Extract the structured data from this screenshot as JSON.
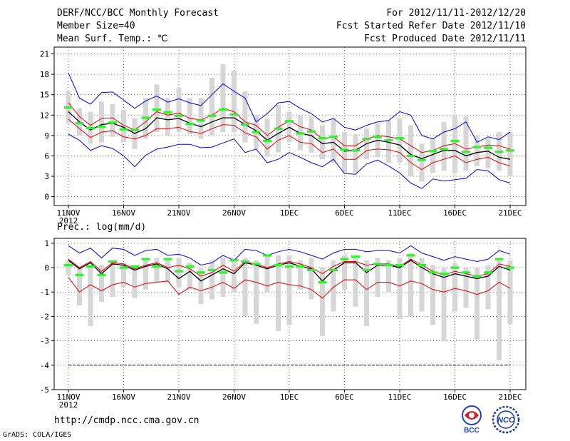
{
  "header": {
    "title": "DERF/NCC/BCC Monthly Forecast",
    "member_size": "Member Size=40",
    "variable": "Mean Surf. Temp.: ℃",
    "period": "For 2012/11/11-2012/12/20",
    "started": "Fcst Started Refer Date 2012/11/10",
    "produced": "Fcst Produced Date 2012/11/11"
  },
  "footer": {
    "url": "http://cmdp.ncc.cma.gov.cn",
    "grads": "GrADS: COLA/IGES",
    "logo_bcc": "BCC",
    "logo_ncc": "NCC"
  },
  "colors": {
    "max_line": "#0000dd",
    "upper_line": "#dd0000",
    "mean_line": "#000000",
    "box": "#d6d6d6",
    "green": "#33ee33",
    "grid": "#555555",
    "ref_line": "#0000cc"
  },
  "chart_data": [
    {
      "type": "line",
      "title": "Mean Surf. Temp.: ℃",
      "x_tick_labels": [
        "11NOV",
        "16NOV",
        "21NOV",
        "26NOV",
        "1DEC",
        "6DEC",
        "11DEC",
        "16DEC",
        "21DEC"
      ],
      "x_tick_sublabel": "2012",
      "x_day_range": [
        1,
        41
      ],
      "ylim": [
        -1.3,
        22
      ],
      "yticks": [
        0,
        3,
        6,
        9,
        12,
        15,
        18,
        21
      ],
      "grid": true,
      "series": [
        {
          "name": "max",
          "values": [
            18.2,
            14.5,
            13.6,
            15.3,
            15.4,
            14.2,
            13.0,
            14.1,
            14.8,
            13.9,
            14.4,
            13.8,
            13.4,
            15.0,
            16.6,
            15.5,
            14.5,
            11.0,
            12.2,
            13.8,
            14.0,
            13.0,
            12.2,
            11.0,
            11.5,
            10.2,
            9.8,
            10.5,
            11.0,
            11.2,
            12.5,
            12.0,
            9.0,
            8.5,
            9.5,
            10.0,
            11.0,
            8.0,
            8.8,
            8.4,
            9.5
          ]
        },
        {
          "name": "upper",
          "values": [
            13.8,
            11.8,
            10.5,
            11.5,
            11.6,
            10.5,
            9.8,
            11.0,
            12.5,
            12.0,
            12.3,
            11.5,
            11.3,
            12.0,
            13.0,
            12.5,
            11.0,
            10.5,
            9.0,
            10.2,
            11.2,
            10.3,
            9.8,
            8.5,
            8.8,
            7.5,
            7.5,
            8.5,
            9.0,
            8.8,
            8.5,
            7.5,
            6.5,
            6.8,
            7.5,
            7.8,
            7.0,
            7.3,
            7.6,
            7.5,
            7.0
          ]
        },
        {
          "name": "mean",
          "values": [
            12.5,
            11.0,
            9.8,
            10.6,
            10.8,
            10.2,
            9.3,
            10.0,
            11.6,
            11.3,
            11.5,
            10.8,
            10.3,
            11.0,
            11.6,
            11.6,
            10.6,
            9.7,
            8.3,
            9.3,
            10.2,
            9.3,
            9.0,
            7.8,
            8.0,
            6.7,
            6.8,
            7.8,
            8.3,
            8.0,
            7.6,
            6.2,
            5.6,
            6.2,
            6.8,
            6.8,
            6.0,
            6.5,
            6.7,
            5.8,
            5.5
          ]
        },
        {
          "name": "lower",
          "values": [
            11.4,
            10.0,
            8.7,
            9.5,
            9.7,
            8.8,
            8.5,
            9.0,
            10.0,
            10.0,
            10.2,
            9.6,
            9.3,
            10.0,
            10.6,
            10.5,
            9.4,
            8.8,
            7.0,
            8.3,
            9.0,
            8.0,
            7.8,
            6.5,
            7.0,
            5.5,
            5.5,
            6.8,
            7.0,
            6.9,
            6.5,
            5.0,
            4.0,
            5.0,
            5.5,
            6.0,
            5.0,
            5.5,
            5.8,
            5.0,
            4.5
          ]
        },
        {
          "name": "min",
          "values": [
            9.2,
            8.3,
            6.8,
            7.5,
            7.1,
            6.0,
            4.4,
            6.1,
            7.0,
            7.3,
            7.7,
            7.7,
            7.2,
            7.3,
            7.9,
            8.5,
            6.5,
            7.0,
            5.0,
            5.5,
            6.5,
            5.8,
            5.0,
            4.4,
            5.5,
            3.4,
            3.3,
            4.8,
            5.4,
            4.5,
            3.5,
            2.0,
            1.2,
            2.6,
            2.3,
            2.5,
            2.7,
            4.0,
            3.8,
            2.5,
            2.0
          ]
        },
        {
          "name": "green_marker",
          "values": [
            13.1,
            10.8,
            10.1,
            10.3,
            10.9,
            9.9,
            9.8,
            11.6,
            12.8,
            12.4,
            11.9,
            10.7,
            11.2,
            11.9,
            12.8,
            12.1,
            10.6,
            9.5,
            8.2,
            10.0,
            11.1,
            9.3,
            9.6,
            8.6,
            8.8,
            6.9,
            6.8,
            8.5,
            8.8,
            8.3,
            8.6,
            6.0,
            5.4,
            6.7,
            7.0,
            8.2,
            6.6,
            7.3,
            7.2,
            6.6,
            6.8
          ]
        },
        {
          "name": "box_high",
          "values": [
            15.5,
            13.0,
            12.5,
            14.0,
            13.6,
            12.8,
            11.5,
            14.5,
            16.5,
            14.5,
            16.0,
            14.5,
            14.5,
            17.5,
            19.5,
            18.5,
            15.5,
            12.0,
            11.5,
            13.5,
            12.5,
            12.0,
            11.8,
            10.5,
            11.5,
            9.5,
            9.2,
            10.0,
            10.8,
            11.2,
            11.5,
            10.5,
            7.8,
            8.5,
            11.0,
            12.0,
            11.8,
            9.0,
            8.5,
            9.5,
            9.5
          ]
        },
        {
          "name": "box_low",
          "values": [
            10.8,
            9.0,
            7.8,
            8.0,
            8.8,
            8.0,
            7.0,
            8.5,
            9.5,
            9.0,
            9.5,
            9.2,
            8.5,
            9.0,
            9.5,
            9.5,
            8.0,
            7.0,
            6.0,
            6.5,
            8.0,
            6.8,
            6.5,
            5.5,
            5.0,
            3.5,
            3.5,
            5.5,
            5.8,
            5.0,
            5.0,
            3.0,
            2.2,
            3.5,
            3.8,
            3.5,
            3.8,
            4.5,
            4.2,
            3.8,
            3.0
          ]
        }
      ]
    },
    {
      "type": "line",
      "title": "Prec.: log(mm/d)",
      "x_tick_labels": [
        "11NOV",
        "16NOV",
        "21NOV",
        "26NOV",
        "1DEC",
        "6DEC",
        "11DEC",
        "16DEC",
        "21DEC"
      ],
      "x_tick_sublabel": "2012",
      "x_day_range": [
        1,
        41
      ],
      "ylim": [
        -5,
        1.2
      ],
      "yticks": [
        -5,
        -4,
        -3,
        -2,
        -1,
        0,
        1
      ],
      "grid": true,
      "reference_line": {
        "name": "dry_threshold",
        "value": -4,
        "style": "dashed"
      },
      "series": [
        {
          "name": "max",
          "values": [
            0.9,
            0.6,
            0.8,
            0.4,
            0.8,
            0.75,
            0.5,
            0.7,
            0.75,
            0.5,
            0.55,
            0.4,
            0.1,
            0.2,
            0.5,
            0.3,
            0.75,
            0.7,
            0.5,
            0.65,
            0.75,
            0.65,
            0.5,
            0.35,
            0.6,
            0.75,
            0.75,
            0.65,
            0.7,
            0.7,
            0.6,
            0.9,
            0.6,
            0.45,
            0.3,
            0.45,
            0.35,
            0.25,
            0.35,
            0.7,
            0.55
          ]
        },
        {
          "name": "upper",
          "values": [
            0.35,
            0.0,
            0.25,
            -0.15,
            0.2,
            0.15,
            -0.05,
            0.1,
            0.2,
            0.0,
            0.1,
            -0.05,
            -0.35,
            -0.2,
            0.1,
            -0.15,
            0.25,
            0.15,
            0.0,
            0.15,
            0.25,
            0.15,
            0.0,
            -0.25,
            0.05,
            0.25,
            0.25,
            0.1,
            0.15,
            0.15,
            0.05,
            0.35,
            0.1,
            -0.15,
            -0.3,
            -0.15,
            -0.25,
            -0.35,
            -0.25,
            0.15,
            0.05
          ]
        },
        {
          "name": "mean",
          "values": [
            0.3,
            -0.05,
            0.2,
            -0.25,
            0.15,
            0.1,
            -0.1,
            0.05,
            0.15,
            -0.05,
            -0.45,
            -0.15,
            -0.55,
            -0.3,
            -0.05,
            -0.25,
            0.2,
            0.1,
            -0.05,
            0.1,
            0.2,
            0.05,
            -0.05,
            -0.55,
            -0.1,
            0.2,
            0.2,
            -0.2,
            0.1,
            0.1,
            0.0,
            0.3,
            0.0,
            -0.25,
            -0.4,
            -0.25,
            -0.35,
            -0.45,
            -0.35,
            0.05,
            -0.1
          ]
        },
        {
          "name": "lower",
          "values": [
            -0.4,
            -1.0,
            -0.7,
            -0.95,
            -0.7,
            -0.6,
            -0.8,
            -0.65,
            -0.6,
            -0.55,
            -1.1,
            -0.8,
            -0.95,
            -0.8,
            -0.6,
            -0.85,
            -0.5,
            -0.6,
            -0.75,
            -0.6,
            -0.7,
            -0.75,
            -0.9,
            -1.25,
            -0.8,
            -0.5,
            -0.5,
            -0.9,
            -0.6,
            -0.6,
            -0.75,
            -0.55,
            -0.65,
            -0.9,
            -1.0,
            -0.85,
            -0.95,
            -1.1,
            -0.95,
            -0.6,
            -0.85
          ]
        },
        {
          "name": "green_marker",
          "values": [
            0.1,
            -0.3,
            0.05,
            -0.3,
            0.25,
            0.0,
            0.05,
            0.35,
            0.05,
            0.35,
            -0.15,
            0.05,
            -0.2,
            -0.1,
            -0.2,
            0.3,
            0.25,
            0.15,
            0.5,
            0.1,
            0.05,
            0.05,
            -0.1,
            -0.6,
            -0.1,
            0.35,
            0.45,
            -0.1,
            0.15,
            0.1,
            0.1,
            0.5,
            0.1,
            -0.2,
            -0.25,
            0.0,
            -0.2,
            -0.35,
            -0.2,
            0.35,
            0.0
          ]
        },
        {
          "name": "box_high",
          "values": [
            0.3,
            0.0,
            0.1,
            0.1,
            0.3,
            0.2,
            0.0,
            0.4,
            0.4,
            0.4,
            0.4,
            0.2,
            0.0,
            0.3,
            0.4,
            0.4,
            0.4,
            0.3,
            0.5,
            0.5,
            0.5,
            0.3,
            0.4,
            0.0,
            0.3,
            0.5,
            0.5,
            0.3,
            0.4,
            0.3,
            0.4,
            0.6,
            0.4,
            0.1,
            0.0,
            0.2,
            0.0,
            0.0,
            0.1,
            0.4,
            0.3
          ]
        },
        {
          "name": "box_low",
          "values": [
            -0.3,
            -1.55,
            -2.4,
            -1.4,
            -1.2,
            -0.8,
            -1.25,
            -0.9,
            -0.6,
            -0.6,
            -0.8,
            -0.9,
            -1.5,
            -1.3,
            -1.2,
            -1.0,
            -2.0,
            -2.3,
            -1.0,
            -2.6,
            -2.35,
            -0.9,
            -1.3,
            -2.8,
            -1.8,
            -0.9,
            -1.6,
            -2.4,
            -1.2,
            -1.0,
            -2.1,
            -2.0,
            -1.8,
            -2.35,
            -3.0,
            -1.8,
            -1.65,
            -2.95,
            -1.7,
            -3.8,
            -2.3
          ]
        }
      ]
    }
  ]
}
